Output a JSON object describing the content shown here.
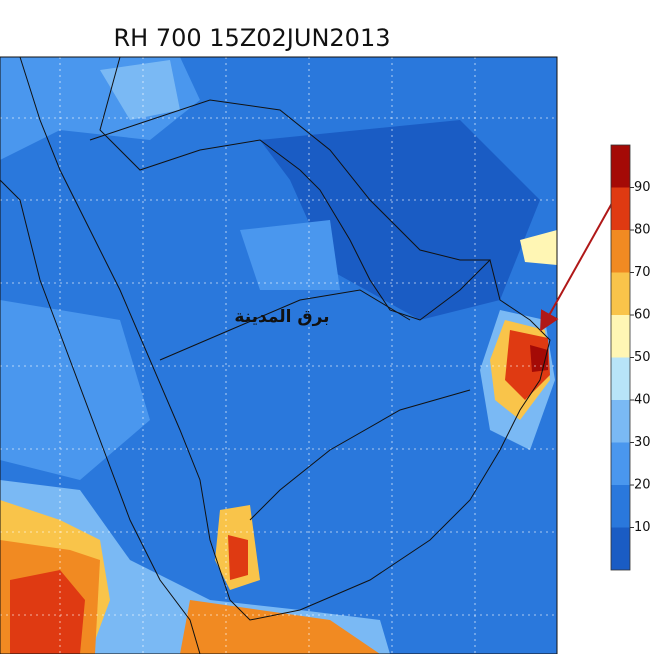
{
  "map": {
    "title": "RH 700 15Z02JUN2013",
    "annotation": "برق المدينة",
    "colorbar": {
      "ticks": [
        10,
        20,
        30,
        40,
        50,
        60,
        70,
        80,
        90
      ],
      "colors": [
        "#1a5cc4",
        "#2a78dc",
        "#4a97ee",
        "#7ab9f4",
        "#b8e4f8",
        "#fff6b4",
        "#f9c44a",
        "#f18a22",
        "#df3a12",
        "#a40a06"
      ]
    }
  }
}
